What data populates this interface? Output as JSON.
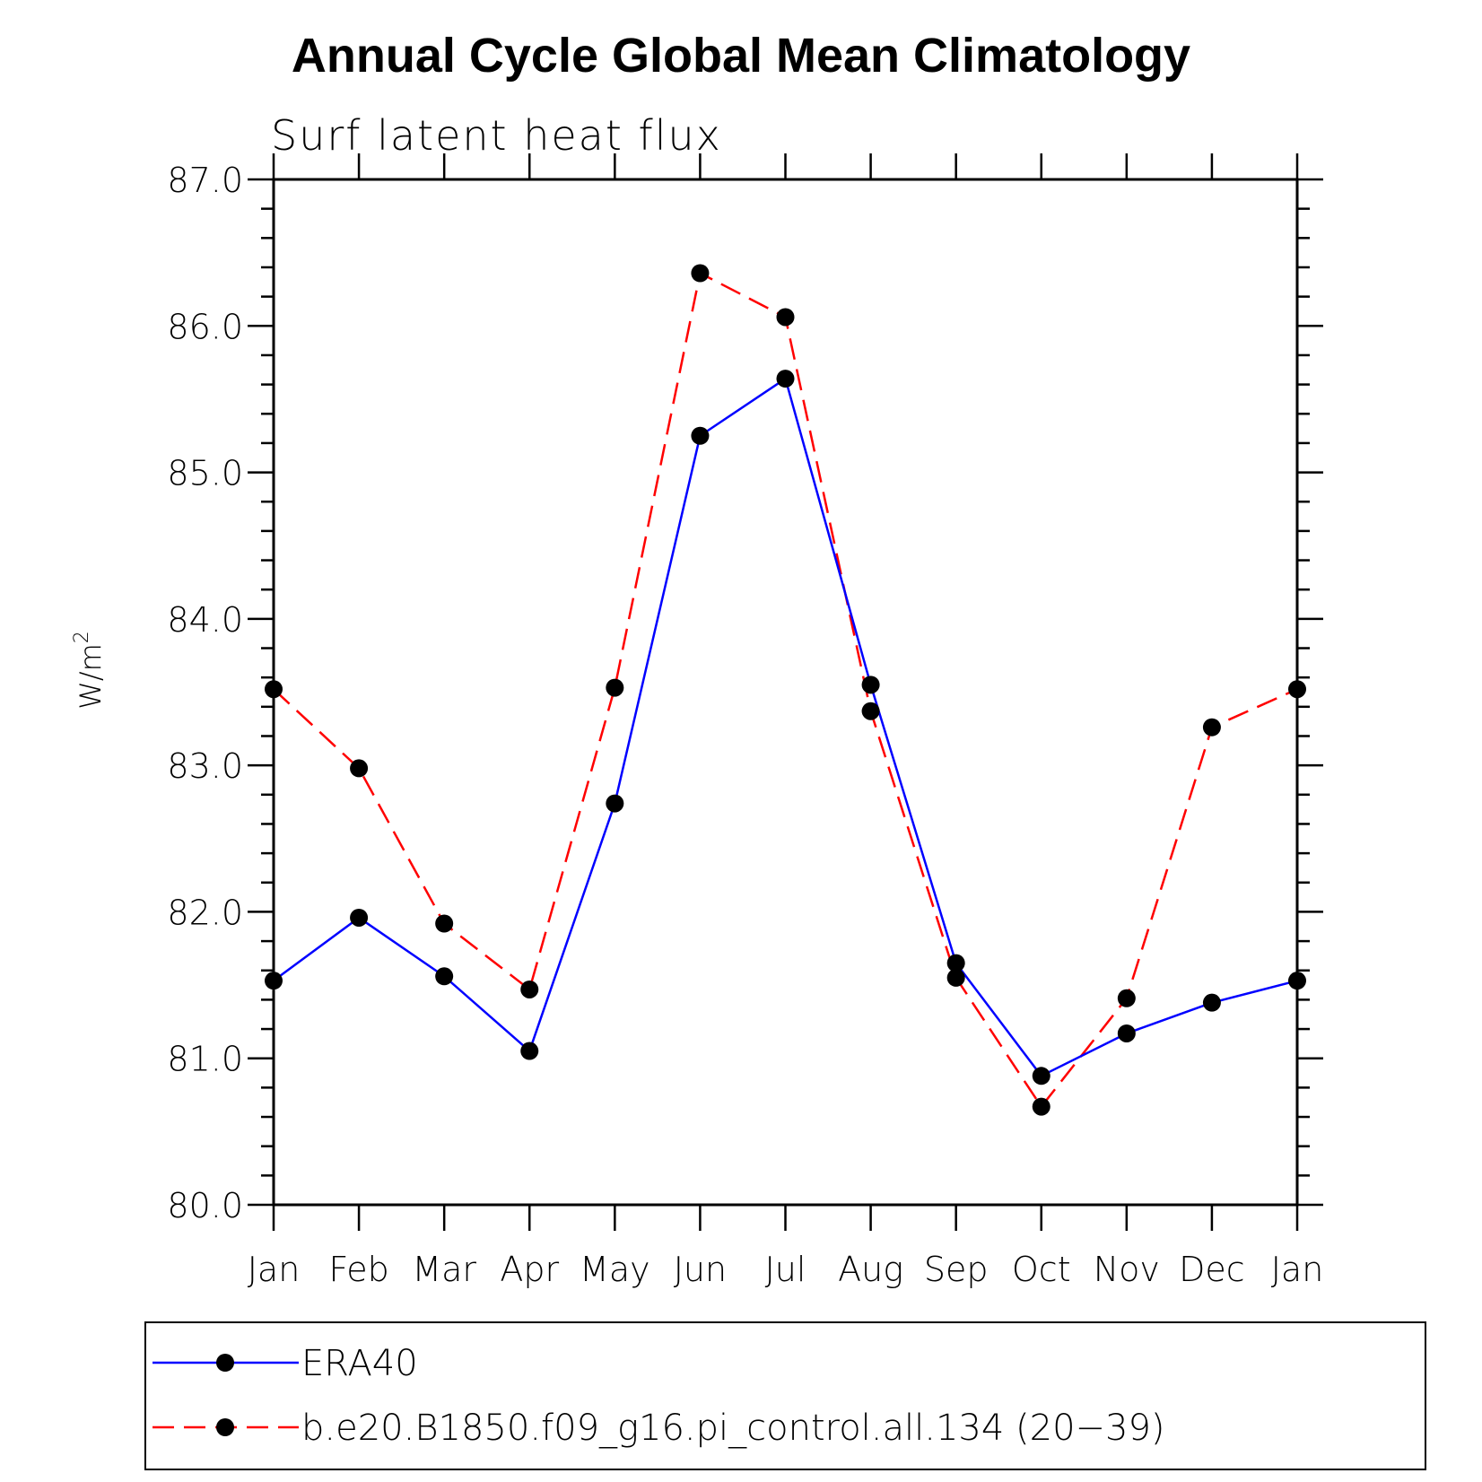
{
  "chart_data": {
    "type": "line",
    "title": "Annual Cycle Global Mean Climatology",
    "subtitle": "Surf latent heat flux",
    "ylabel": "W/m",
    "ylabel_superscript": "2",
    "xlabel": "",
    "categories": [
      "Jan",
      "Feb",
      "Mar",
      "Apr",
      "May",
      "Jun",
      "Jul",
      "Aug",
      "Sep",
      "Oct",
      "Nov",
      "Dec",
      "Jan"
    ],
    "ylim": [
      80.0,
      87.0
    ],
    "yticks": [
      "80.0",
      "81.0",
      "82.0",
      "83.0",
      "84.0",
      "85.0",
      "86.0",
      "87.0"
    ],
    "grid": false,
    "legend_position": "bottom",
    "series": [
      {
        "name": "ERA40",
        "color": "#0000ff",
        "line_style": "solid",
        "marker": "filled-circle",
        "values": [
          81.53,
          81.96,
          81.56,
          81.05,
          82.74,
          85.25,
          85.64,
          83.55,
          81.65,
          80.88,
          81.17,
          81.38,
          81.53
        ]
      },
      {
        "name": "b.e20.B1850.f09_g16.pi_control.all.134 (20−39)",
        "color": "#ff0000",
        "line_style": "dashed",
        "marker": "filled-circle",
        "values": [
          83.52,
          82.98,
          81.92,
          81.47,
          83.53,
          86.36,
          86.06,
          83.37,
          81.55,
          80.67,
          81.41,
          83.26,
          83.52
        ]
      }
    ]
  }
}
